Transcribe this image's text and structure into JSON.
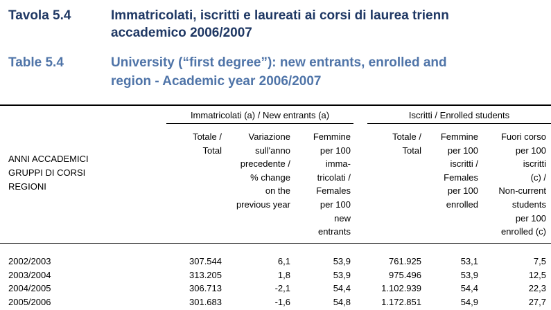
{
  "header": {
    "it_label": "Tavola 5.4",
    "it_title": [
      "Immatricolati, iscritti e laureati ai corsi di laurea trienn",
      "accademico 2006/2007"
    ],
    "en_label": "Table 5.4",
    "en_title": [
      "University (“first degree”): new entrants, enrolled and",
      "region - Academic year 2006/2007"
    ]
  },
  "table": {
    "groups": [
      "Immatricolati (a) / New entrants (a)",
      "Iscritti / Enrolled students"
    ],
    "stub_header": [
      "ANNI ACCADEMICI",
      "GRUPPI DI CORSI",
      "REGIONI"
    ],
    "columns": [
      [
        "Totale /",
        "Total"
      ],
      [
        "Variazione",
        "sull'anno",
        "precedente /",
        "% change",
        "on the",
        "previous year"
      ],
      [
        "Femmine",
        "per 100",
        "imma-",
        "tricolati /",
        "Females",
        "per 100",
        "new",
        "entrants"
      ],
      [
        "Totale /",
        "Total"
      ],
      [
        "Femmine",
        "per 100",
        "iscritti /",
        "Females",
        "per 100",
        "enrolled"
      ],
      [
        "Fuori corso",
        "per 100",
        "iscritti",
        "(c) /",
        "Non-current",
        "students",
        "per 100",
        "enrolled (c)"
      ]
    ],
    "rows": [
      [
        "2002/2003",
        "307.544",
        "6,1",
        "53,9",
        "761.925",
        "53,1",
        "7,5"
      ],
      [
        "2003/2004",
        "313.205",
        "1,8",
        "53,9",
        "975.496",
        "53,9",
        "12,5"
      ],
      [
        "2004/2005",
        "306.713",
        "-2,1",
        "54,4",
        "1.102.939",
        "54,4",
        "22,3"
      ],
      [
        "2005/2006",
        "301.683",
        "-1,6",
        "54,8",
        "1.172.851",
        "54,9",
        "27,7"
      ]
    ]
  }
}
